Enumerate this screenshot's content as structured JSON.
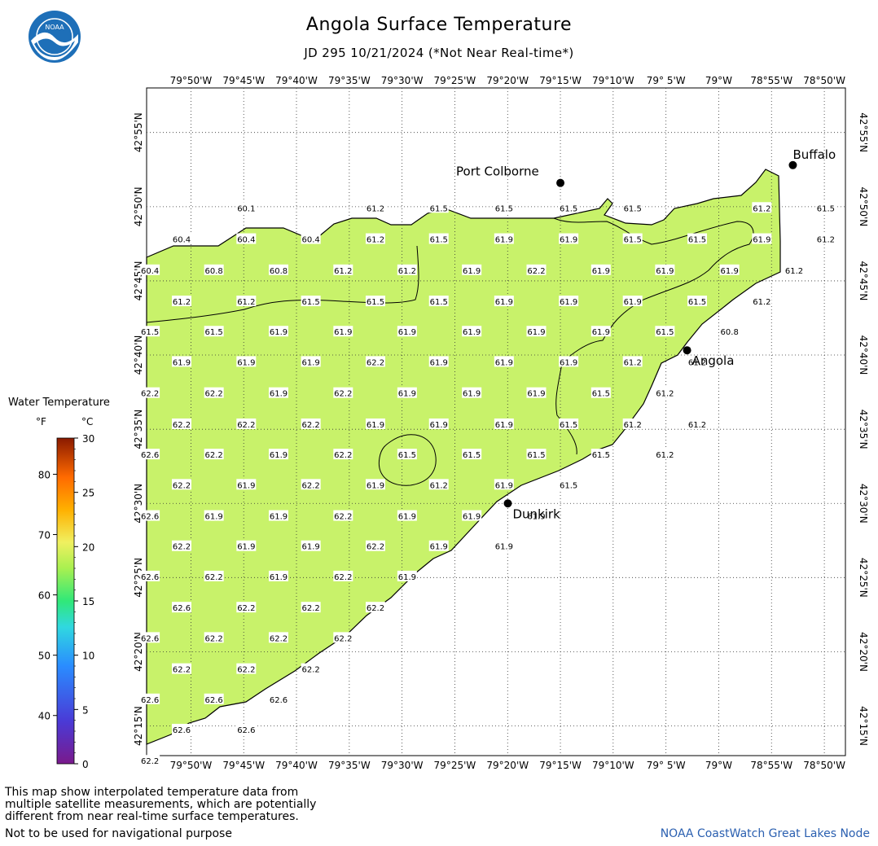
{
  "header": {
    "title": "Angola Surface Temperature",
    "subtitle": "JD 295 10/21/2024 (*Not Near Real-time*)",
    "logo_text": "NOAA"
  },
  "map": {
    "lon_labels": [
      "79°50'W",
      "79°45'W",
      "79°40'W",
      "79°35'W",
      "79°30'W",
      "79°25'W",
      "79°20'W",
      "79°15'W",
      "79°10'W",
      "79° 5'W",
      "79°W",
      "78°55'W",
      "78°50'W"
    ],
    "lat_labels": [
      "42°55'N",
      "42°50'N",
      "42°45'N",
      "42°40'N",
      "42°35'N",
      "42°30'N",
      "42°25'N",
      "42°20'N",
      "42°15'N"
    ],
    "cities": [
      {
        "name": "Buffalo",
        "lon": -78.883,
        "lat": 42.88
      },
      {
        "name": "Port Colborne",
        "lon": -79.25,
        "lat": 42.86
      },
      {
        "name": "Angola",
        "lon": -79.05,
        "lat": 42.672
      },
      {
        "name": "Dunkirk",
        "lon": -79.333,
        "lat": 42.5
      }
    ],
    "temperature_labels": [
      {
        "v": "60.1",
        "lon": -79.746,
        "lat": 42.832
      },
      {
        "v": "61.2",
        "lon": -79.542,
        "lat": 42.832
      },
      {
        "v": "61.5",
        "lon": -79.442,
        "lat": 42.832
      },
      {
        "v": "61.5",
        "lon": -79.339,
        "lat": 42.832
      },
      {
        "v": "61.5",
        "lon": -79.237,
        "lat": 42.832
      },
      {
        "v": "61.5",
        "lon": -79.136,
        "lat": 42.832
      },
      {
        "v": "61.2",
        "lon": -78.932,
        "lat": 42.832
      },
      {
        "v": "61.5",
        "lon": -78.831,
        "lat": 42.832
      },
      {
        "v": "60.4",
        "lon": -79.848,
        "lat": 42.797
      },
      {
        "v": "60.4",
        "lon": -79.746,
        "lat": 42.797
      },
      {
        "v": "60.4",
        "lon": -79.644,
        "lat": 42.797
      },
      {
        "v": "61.2",
        "lon": -79.542,
        "lat": 42.797
      },
      {
        "v": "61.5",
        "lon": -79.442,
        "lat": 42.797
      },
      {
        "v": "61.9",
        "lon": -79.339,
        "lat": 42.797
      },
      {
        "v": "61.9",
        "lon": -79.237,
        "lat": 42.797
      },
      {
        "v": "61.5",
        "lon": -79.136,
        "lat": 42.797
      },
      {
        "v": "61.5",
        "lon": -79.034,
        "lat": 42.797
      },
      {
        "v": "61.9",
        "lon": -78.932,
        "lat": 42.797
      },
      {
        "v": "61.2",
        "lon": -78.831,
        "lat": 42.797
      },
      {
        "v": "60.4",
        "lon": -79.898,
        "lat": 42.762
      },
      {
        "v": "60.8",
        "lon": -79.797,
        "lat": 42.762
      },
      {
        "v": "60.8",
        "lon": -79.695,
        "lat": 42.762
      },
      {
        "v": "61.2",
        "lon": -79.593,
        "lat": 42.762
      },
      {
        "v": "61.2",
        "lon": -79.492,
        "lat": 42.762
      },
      {
        "v": "61.9",
        "lon": -79.39,
        "lat": 42.762
      },
      {
        "v": "62.2",
        "lon": -79.288,
        "lat": 42.762
      },
      {
        "v": "61.9",
        "lon": -79.186,
        "lat": 42.762
      },
      {
        "v": "61.9",
        "lon": -79.085,
        "lat": 42.762
      },
      {
        "v": "61.9",
        "lon": -78.983,
        "lat": 42.762
      },
      {
        "v": "61.2",
        "lon": -78.881,
        "lat": 42.762
      },
      {
        "v": "61.2",
        "lon": -79.848,
        "lat": 42.727
      },
      {
        "v": "61.2",
        "lon": -79.746,
        "lat": 42.727
      },
      {
        "v": "61.5",
        "lon": -79.644,
        "lat": 42.727
      },
      {
        "v": "61.5",
        "lon": -79.542,
        "lat": 42.727
      },
      {
        "v": "61.5",
        "lon": -79.442,
        "lat": 42.727
      },
      {
        "v": "61.9",
        "lon": -79.339,
        "lat": 42.727
      },
      {
        "v": "61.9",
        "lon": -79.237,
        "lat": 42.727
      },
      {
        "v": "61.9",
        "lon": -79.136,
        "lat": 42.727
      },
      {
        "v": "61.5",
        "lon": -79.034,
        "lat": 42.727
      },
      {
        "v": "61.2",
        "lon": -78.932,
        "lat": 42.727
      },
      {
        "v": "61.5",
        "lon": -79.898,
        "lat": 42.693
      },
      {
        "v": "61.5",
        "lon": -79.797,
        "lat": 42.693
      },
      {
        "v": "61.9",
        "lon": -79.695,
        "lat": 42.693
      },
      {
        "v": "61.9",
        "lon": -79.593,
        "lat": 42.693
      },
      {
        "v": "61.9",
        "lon": -79.492,
        "lat": 42.693
      },
      {
        "v": "61.9",
        "lon": -79.39,
        "lat": 42.693
      },
      {
        "v": "61.9",
        "lon": -79.288,
        "lat": 42.693
      },
      {
        "v": "61.9",
        "lon": -79.186,
        "lat": 42.693
      },
      {
        "v": "61.5",
        "lon": -79.085,
        "lat": 42.693
      },
      {
        "v": "60.8",
        "lon": -78.983,
        "lat": 42.693
      },
      {
        "v": "61.9",
        "lon": -79.848,
        "lat": 42.659
      },
      {
        "v": "61.9",
        "lon": -79.746,
        "lat": 42.659
      },
      {
        "v": "61.9",
        "lon": -79.644,
        "lat": 42.659
      },
      {
        "v": "62.2",
        "lon": -79.542,
        "lat": 42.659
      },
      {
        "v": "61.9",
        "lon": -79.442,
        "lat": 42.659
      },
      {
        "v": "61.9",
        "lon": -79.339,
        "lat": 42.659
      },
      {
        "v": "61.9",
        "lon": -79.237,
        "lat": 42.659
      },
      {
        "v": "61.2",
        "lon": -79.136,
        "lat": 42.659
      },
      {
        "v": "61.2",
        "lon": -79.034,
        "lat": 42.659
      },
      {
        "v": "62.2",
        "lon": -79.898,
        "lat": 42.624
      },
      {
        "v": "62.2",
        "lon": -79.797,
        "lat": 42.624
      },
      {
        "v": "61.9",
        "lon": -79.695,
        "lat": 42.624
      },
      {
        "v": "62.2",
        "lon": -79.593,
        "lat": 42.624
      },
      {
        "v": "61.9",
        "lon": -79.492,
        "lat": 42.624
      },
      {
        "v": "61.9",
        "lon": -79.39,
        "lat": 42.624
      },
      {
        "v": "61.9",
        "lon": -79.288,
        "lat": 42.624
      },
      {
        "v": "61.5",
        "lon": -79.186,
        "lat": 42.624
      },
      {
        "v": "61.2",
        "lon": -79.085,
        "lat": 42.624
      },
      {
        "v": "62.2",
        "lon": -79.848,
        "lat": 42.589
      },
      {
        "v": "62.2",
        "lon": -79.746,
        "lat": 42.589
      },
      {
        "v": "62.2",
        "lon": -79.644,
        "lat": 42.589
      },
      {
        "v": "61.9",
        "lon": -79.542,
        "lat": 42.589
      },
      {
        "v": "61.9",
        "lon": -79.442,
        "lat": 42.589
      },
      {
        "v": "61.9",
        "lon": -79.339,
        "lat": 42.589
      },
      {
        "v": "61.5",
        "lon": -79.237,
        "lat": 42.589
      },
      {
        "v": "61.2",
        "lon": -79.136,
        "lat": 42.589
      },
      {
        "v": "61.2",
        "lon": -79.034,
        "lat": 42.589
      },
      {
        "v": "62.6",
        "lon": -79.898,
        "lat": 42.555
      },
      {
        "v": "62.2",
        "lon": -79.797,
        "lat": 42.555
      },
      {
        "v": "61.9",
        "lon": -79.695,
        "lat": 42.555
      },
      {
        "v": "62.2",
        "lon": -79.593,
        "lat": 42.555
      },
      {
        "v": "61.5",
        "lon": -79.492,
        "lat": 42.555
      },
      {
        "v": "61.5",
        "lon": -79.39,
        "lat": 42.555
      },
      {
        "v": "61.5",
        "lon": -79.288,
        "lat": 42.555
      },
      {
        "v": "61.5",
        "lon": -79.186,
        "lat": 42.555
      },
      {
        "v": "61.2",
        "lon": -79.085,
        "lat": 42.555
      },
      {
        "v": "62.2",
        "lon": -79.848,
        "lat": 42.521
      },
      {
        "v": "61.9",
        "lon": -79.746,
        "lat": 42.521
      },
      {
        "v": "62.2",
        "lon": -79.644,
        "lat": 42.521
      },
      {
        "v": "61.9",
        "lon": -79.542,
        "lat": 42.521
      },
      {
        "v": "61.2",
        "lon": -79.442,
        "lat": 42.521
      },
      {
        "v": "61.9",
        "lon": -79.339,
        "lat": 42.521
      },
      {
        "v": "61.5",
        "lon": -79.237,
        "lat": 42.521
      },
      {
        "v": "62.6",
        "lon": -79.898,
        "lat": 42.486
      },
      {
        "v": "61.9",
        "lon": -79.797,
        "lat": 42.486
      },
      {
        "v": "61.9",
        "lon": -79.695,
        "lat": 42.486
      },
      {
        "v": "62.2",
        "lon": -79.593,
        "lat": 42.486
      },
      {
        "v": "61.9",
        "lon": -79.492,
        "lat": 42.486
      },
      {
        "v": "61.9",
        "lon": -79.39,
        "lat": 42.486
      },
      {
        "v": "61.9",
        "lon": -79.288,
        "lat": 42.486
      },
      {
        "v": "62.2",
        "lon": -79.848,
        "lat": 42.452
      },
      {
        "v": "61.9",
        "lon": -79.746,
        "lat": 42.452
      },
      {
        "v": "61.9",
        "lon": -79.644,
        "lat": 42.452
      },
      {
        "v": "62.2",
        "lon": -79.542,
        "lat": 42.452
      },
      {
        "v": "61.9",
        "lon": -79.442,
        "lat": 42.452
      },
      {
        "v": "61.9",
        "lon": -79.339,
        "lat": 42.452
      },
      {
        "v": "62.6",
        "lon": -79.898,
        "lat": 42.418
      },
      {
        "v": "62.2",
        "lon": -79.797,
        "lat": 42.418
      },
      {
        "v": "61.9",
        "lon": -79.695,
        "lat": 42.418
      },
      {
        "v": "62.2",
        "lon": -79.593,
        "lat": 42.418
      },
      {
        "v": "61.9",
        "lon": -79.492,
        "lat": 42.418
      },
      {
        "v": "62.6",
        "lon": -79.848,
        "lat": 42.383
      },
      {
        "v": "62.2",
        "lon": -79.746,
        "lat": 42.383
      },
      {
        "v": "62.2",
        "lon": -79.644,
        "lat": 42.383
      },
      {
        "v": "62.2",
        "lon": -79.542,
        "lat": 42.383
      },
      {
        "v": "62.6",
        "lon": -79.898,
        "lat": 42.349
      },
      {
        "v": "62.2",
        "lon": -79.797,
        "lat": 42.349
      },
      {
        "v": "62.2",
        "lon": -79.695,
        "lat": 42.349
      },
      {
        "v": "62.2",
        "lon": -79.593,
        "lat": 42.349
      },
      {
        "v": "62.2",
        "lon": -79.848,
        "lat": 42.314
      },
      {
        "v": "62.2",
        "lon": -79.746,
        "lat": 42.314
      },
      {
        "v": "62.2",
        "lon": -79.644,
        "lat": 42.314
      },
      {
        "v": "62.6",
        "lon": -79.898,
        "lat": 42.28
      },
      {
        "v": "62.6",
        "lon": -79.797,
        "lat": 42.28
      },
      {
        "v": "62.6",
        "lon": -79.695,
        "lat": 42.28
      },
      {
        "v": "62.6",
        "lon": -79.848,
        "lat": 42.246
      },
      {
        "v": "62.6",
        "lon": -79.746,
        "lat": 42.246
      },
      {
        "v": "62.2",
        "lon": -79.898,
        "lat": 42.211
      }
    ]
  },
  "legend": {
    "title": "Water Temperature",
    "unit_f": "°F",
    "unit_c": "°C",
    "f_ticks": [
      "80",
      "70",
      "60",
      "50",
      "40"
    ],
    "c_ticks": [
      "30",
      "25",
      "20",
      "15",
      "10",
      "5",
      "0"
    ]
  },
  "footer": {
    "note_line1": "This map show interpolated temperature data from",
    "note_line2": "multiple satellite measurements, which are potentially",
    "note_line3": "different from near real-time surface temperatures.",
    "warning": "Not to be used for navigational purpose",
    "credit": "NOAA CoastWatch Great Lakes Node"
  },
  "colors": {
    "water": "#c8f26a",
    "land": "#ffffff",
    "accent": "#2a5fb0"
  }
}
